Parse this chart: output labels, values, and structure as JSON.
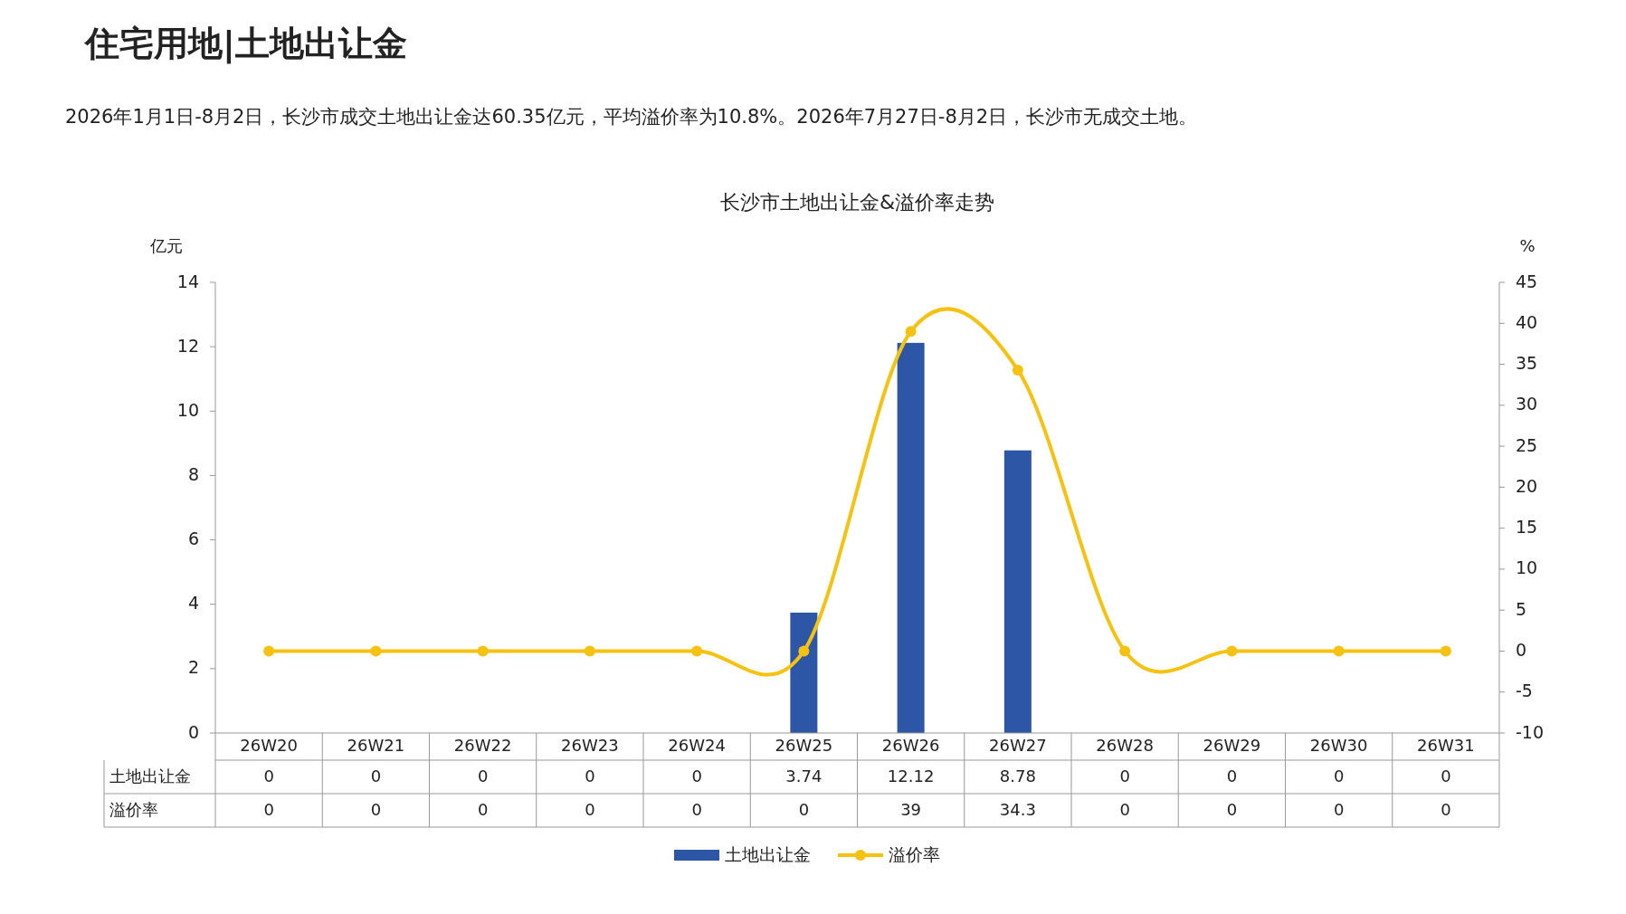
{
  "chart_data": {
    "type": "bar",
    "title": "长沙市土地出让金&溢价率走势",
    "annotations": [
      "住宅用地|土地出让金",
      "2026年1月1日-8月2日，长沙市成交土地出让金达60.35亿元，平均溢价率为10.8%。2026年7月27日-8月2日，长沙市无成交土地。"
    ],
    "ylabel": "亿元",
    "y2label": "%",
    "categories": [
      "26W20",
      "26W21",
      "26W22",
      "26W23",
      "26W24",
      "26W25",
      "26W26",
      "26W27",
      "26W28",
      "26W29",
      "26W30",
      "26W31"
    ],
    "series": [
      {
        "name": "土地出让金",
        "color": "#2e56a6",
        "values": [
          0,
          0,
          0,
          0,
          0,
          3.74,
          12.12,
          8.78,
          0,
          0,
          0,
          0
        ]
      },
      {
        "name": "溢价率",
        "type": "line",
        "axis": "y2",
        "color": "#f5c211",
        "marker": "circle",
        "values": [
          0,
          0,
          0,
          0,
          0,
          0,
          39,
          34.3,
          0,
          0,
          0,
          0
        ]
      }
    ],
    "ylim": [
      0,
      14
    ],
    "yticks": [
      0,
      2,
      4,
      6,
      8,
      10,
      12,
      14
    ],
    "y2lim": [
      -10,
      45
    ],
    "y2ticks": [
      -10,
      -5,
      0,
      5,
      10,
      15,
      20,
      25,
      30,
      35,
      40,
      45
    ],
    "data_labels": true,
    "legend": "bottom",
    "grid": false
  }
}
